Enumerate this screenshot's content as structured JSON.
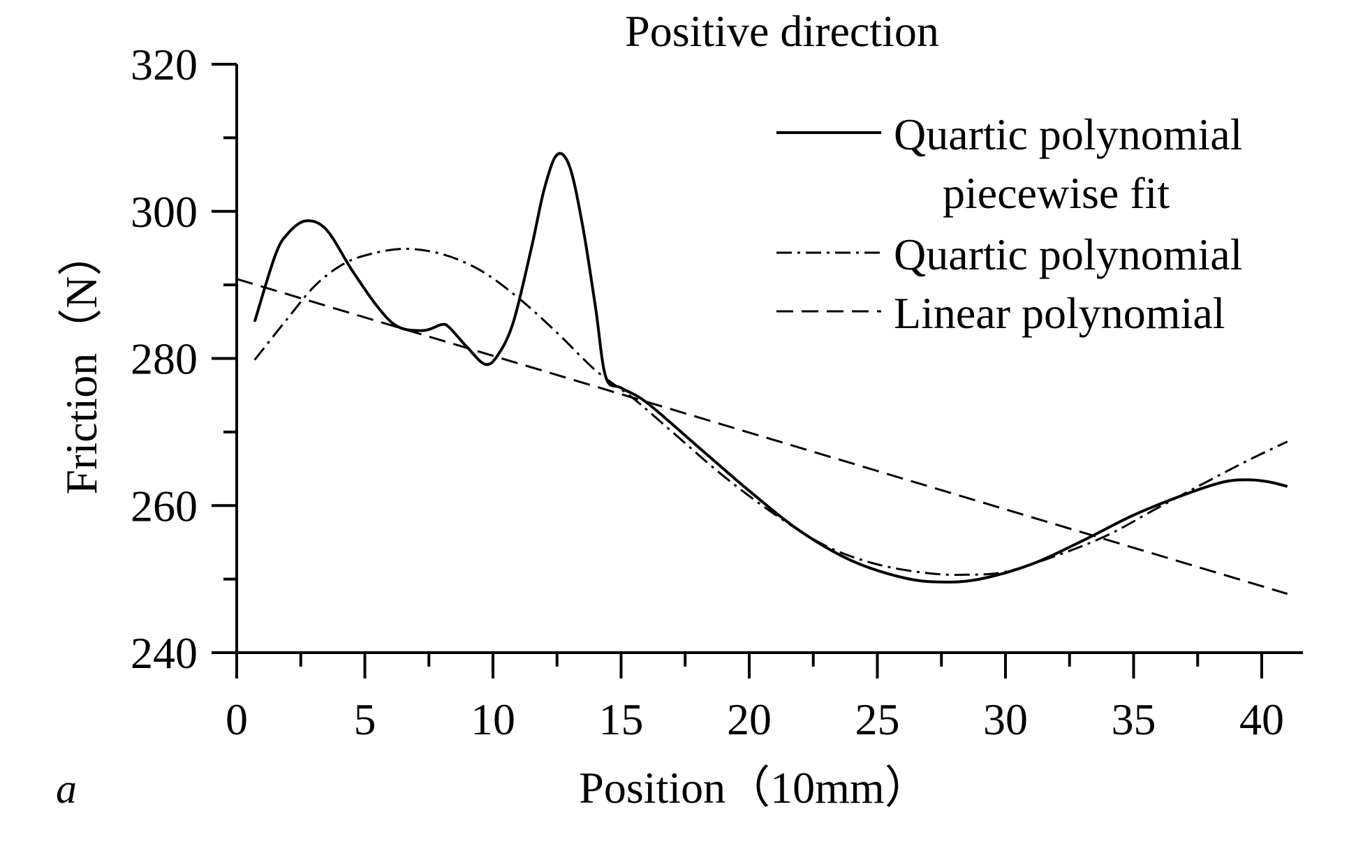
{
  "chart_data": {
    "type": "line",
    "title": "Positive direction",
    "xlabel": "Position（10mm）",
    "ylabel": "Friction（N）",
    "panel_label": "a",
    "xlim": [
      0,
      42
    ],
    "ylim": [
      240,
      320
    ],
    "x_ticks": [
      0,
      5,
      10,
      15,
      20,
      25,
      30,
      35,
      40
    ],
    "x_minor_ticks": [
      2.5,
      7.5,
      12.5,
      17.5,
      22.5,
      27.5,
      32.5,
      37.5
    ],
    "y_ticks": [
      240,
      260,
      280,
      300,
      320
    ],
    "y_minor_ticks": [
      250,
      270,
      290,
      310
    ],
    "legend_position": "top-right",
    "series": [
      {
        "name": "Quartic polynomial piecewise fit",
        "legend_lines": [
          "Quartic polynomial",
          "piecewise fit"
        ],
        "style": "solid",
        "x": [
          0.7,
          1.5,
          2.0,
          2.7,
          3.5,
          4.5,
          5.5,
          6.3,
          7.3,
          8.0,
          8.3,
          9.0,
          9.7,
          10.2,
          10.8,
          11.5,
          12.0,
          12.5,
          13.0,
          13.5,
          14.0,
          14.4,
          15.0,
          16.0,
          18.0,
          20.0,
          22.0,
          24.0,
          26.0,
          27.5,
          29.0,
          31.0,
          33.0,
          35.0,
          37.0,
          38.5,
          39.5,
          40.3,
          41.0
        ],
        "y": [
          285,
          294,
          297,
          298.7,
          297.5,
          292,
          287,
          284.3,
          283.8,
          284.6,
          284.2,
          281.5,
          279.2,
          280.5,
          285,
          295,
          303,
          307.7,
          306,
          298,
          287,
          277.5,
          276,
          274,
          268,
          262,
          256.5,
          252.5,
          250.2,
          249.6,
          250,
          252,
          255.2,
          258.7,
          261.5,
          263.2,
          263.5,
          263.2,
          262.6
        ]
      },
      {
        "name": "Quartic polynomial",
        "legend_lines": [
          "Quartic polynomial"
        ],
        "style": "dash-dot",
        "x": [
          0.7,
          2.0,
          3.0,
          4.0,
          5.0,
          6.5,
          8.0,
          9.5,
          11.0,
          12.5,
          14.0,
          15.5,
          17.0,
          19.0,
          21.0,
          23.0,
          25.0,
          27.0,
          28.5,
          30.0,
          32.0,
          34.0,
          36.0,
          38.0,
          39.5,
          41.0
        ],
        "y": [
          279.8,
          285.5,
          289.7,
          292.5,
          294,
          294.9,
          294.2,
          292,
          288.2,
          283.5,
          278.4,
          274.5,
          270,
          264,
          258.8,
          254.5,
          252,
          250.8,
          250.6,
          251,
          253.2,
          256,
          259.8,
          263.5,
          266.2,
          268.7
        ]
      },
      {
        "name": "Linear polynomial",
        "legend_lines": [
          "Linear polynomial"
        ],
        "style": "dashed",
        "x": [
          0,
          41
        ],
        "y": [
          290.8,
          248
        ]
      }
    ]
  }
}
